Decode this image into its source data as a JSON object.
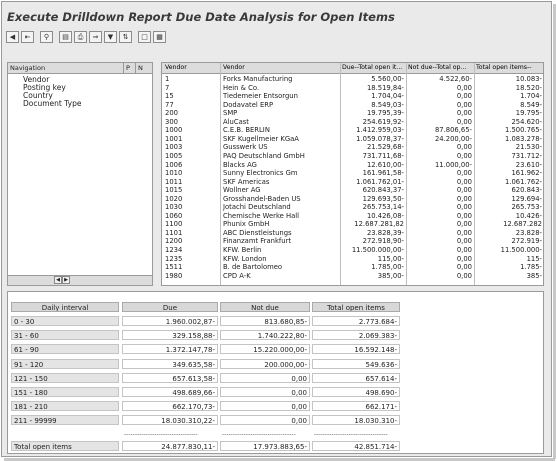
{
  "title": "Execute Drilldown Report Due Date Analysis for Open Items",
  "toolbar": [
    "back",
    "first",
    "find",
    "sep-a",
    "layout",
    "print",
    "export",
    "filter",
    "sep-b",
    "doc",
    "graphic"
  ],
  "navigation": {
    "headers": [
      "Navigation",
      "P",
      "N"
    ],
    "items": [
      "Vendor",
      "Posting key",
      "Country",
      "Document Type"
    ]
  },
  "vendor_table": {
    "headers": [
      "Vendor",
      "Vendor",
      "Due--Total open it...",
      "Not due--Total op...",
      "Total open items--"
    ],
    "rows": [
      [
        "1",
        "Forks Manufacturing",
        "5.560,00-",
        "4.522,60-",
        "10.083-"
      ],
      [
        "7",
        "Hein & Co.",
        "18.519,84-",
        "0,00",
        "18.520-"
      ],
      [
        "15",
        "Tiedemeier Entsorgun",
        "1.704,04-",
        "0,00",
        "1.704-"
      ],
      [
        "77",
        "Dodavatel ERP",
        "8.549,03-",
        "0,00",
        "8.549-"
      ],
      [
        "200",
        "SMP",
        "19.795,39-",
        "0,00",
        "19.795-"
      ],
      [
        "300",
        "AluCast",
        "254.619,92-",
        "0,00",
        "254.620-"
      ],
      [
        "1000",
        "C.E.B. BERLIN",
        "1.412.959,03-",
        "87.806,65-",
        "1.500.765-"
      ],
      [
        "1001",
        "SKF Kugellmeier KGaA",
        "1.059.078,37-",
        "24.200,00-",
        "1.083.278-"
      ],
      [
        "1003",
        "Gusswerk US",
        "21.529,68-",
        "0,00",
        "21.530-"
      ],
      [
        "1005",
        "PAQ Deutschland GmbH",
        "731.711,68-",
        "0,00",
        "731.712-"
      ],
      [
        "1006",
        "Blacks AG",
        "12.610,00-",
        "11.000,00-",
        "23.610-"
      ],
      [
        "1010",
        "Sunny Electronics Gm",
        "161.961,58-",
        "0,00",
        "161.962-"
      ],
      [
        "1011",
        "SKF Americas",
        "1.061.762,01-",
        "0,00",
        "1.061.762-"
      ],
      [
        "1015",
        "Wollner AG",
        "620.843,37-",
        "0,00",
        "620.843-"
      ],
      [
        "1020",
        "Grosshandel-Baden US",
        "129.693,50-",
        "0,00",
        "129.694-"
      ],
      [
        "1030",
        "Jotachi Deutschland",
        "265.753,14-",
        "0,00",
        "265.753-"
      ],
      [
        "1060",
        "Chemische Werke Hall",
        "10.426,08-",
        "0,00",
        "10.426-"
      ],
      [
        "1100",
        "Phunix GmbH",
        "12.687.281,82",
        "0,00",
        "12.687.282"
      ],
      [
        "1101",
        "ABC Dienstleistungs",
        "23.828,39-",
        "0,00",
        "23.828-"
      ],
      [
        "1200",
        "Finanzamt Frankfurt",
        "272.918,90-",
        "0,00",
        "272.919-"
      ],
      [
        "1234",
        "KFW. Berlin",
        "11.500.000,00-",
        "0,00",
        "11.500.000-"
      ],
      [
        "1235",
        "KFW. London",
        "115,00-",
        "0,00",
        "115-"
      ],
      [
        "1511",
        "B. de Bartolomeo",
        "1.785,00-",
        "0,00",
        "1.785-"
      ],
      [
        "1980",
        "CPD A-K",
        "385,00-",
        "0,00",
        "385-"
      ]
    ]
  },
  "interval_table": {
    "headers": [
      "Daily interval",
      "Due",
      "Not due",
      "Total open items"
    ],
    "rows": [
      [
        "0 - 30",
        "1.960.002,87-",
        "813.680,85-",
        "2.773.684-"
      ],
      [
        "31 - 60",
        "329.158,88-",
        "1.740.222,80-",
        "2.069.383-"
      ],
      [
        "61 - 90",
        "1.372.147,78-",
        "15.220.000,00-",
        "16.592.148-"
      ],
      [
        "91 - 120",
        "349.635,58-",
        "200.000,00-",
        "549.636-"
      ],
      [
        "121 - 150",
        "657.613,58-",
        "0,00",
        "657.614-"
      ],
      [
        "151 - 180",
        "498.689,66-",
        "0,00",
        "498.690-"
      ],
      [
        "181 - 210",
        "662.170,73-",
        "0,00",
        "662.171-"
      ],
      [
        "211 - 99999",
        "18.030.310,22-",
        "0,00",
        "18.030.310-"
      ]
    ],
    "separator": [
      "",
      "----------------------------------",
      "----------------------------------",
      "----------------------------------"
    ],
    "total_row": [
      "Total open items",
      "24.877.830,11-",
      "17.973.883,65-",
      "42.851.714-"
    ],
    "double_line": [
      "=======================",
      "=======================",
      "=======================",
      "======================="
    ]
  }
}
